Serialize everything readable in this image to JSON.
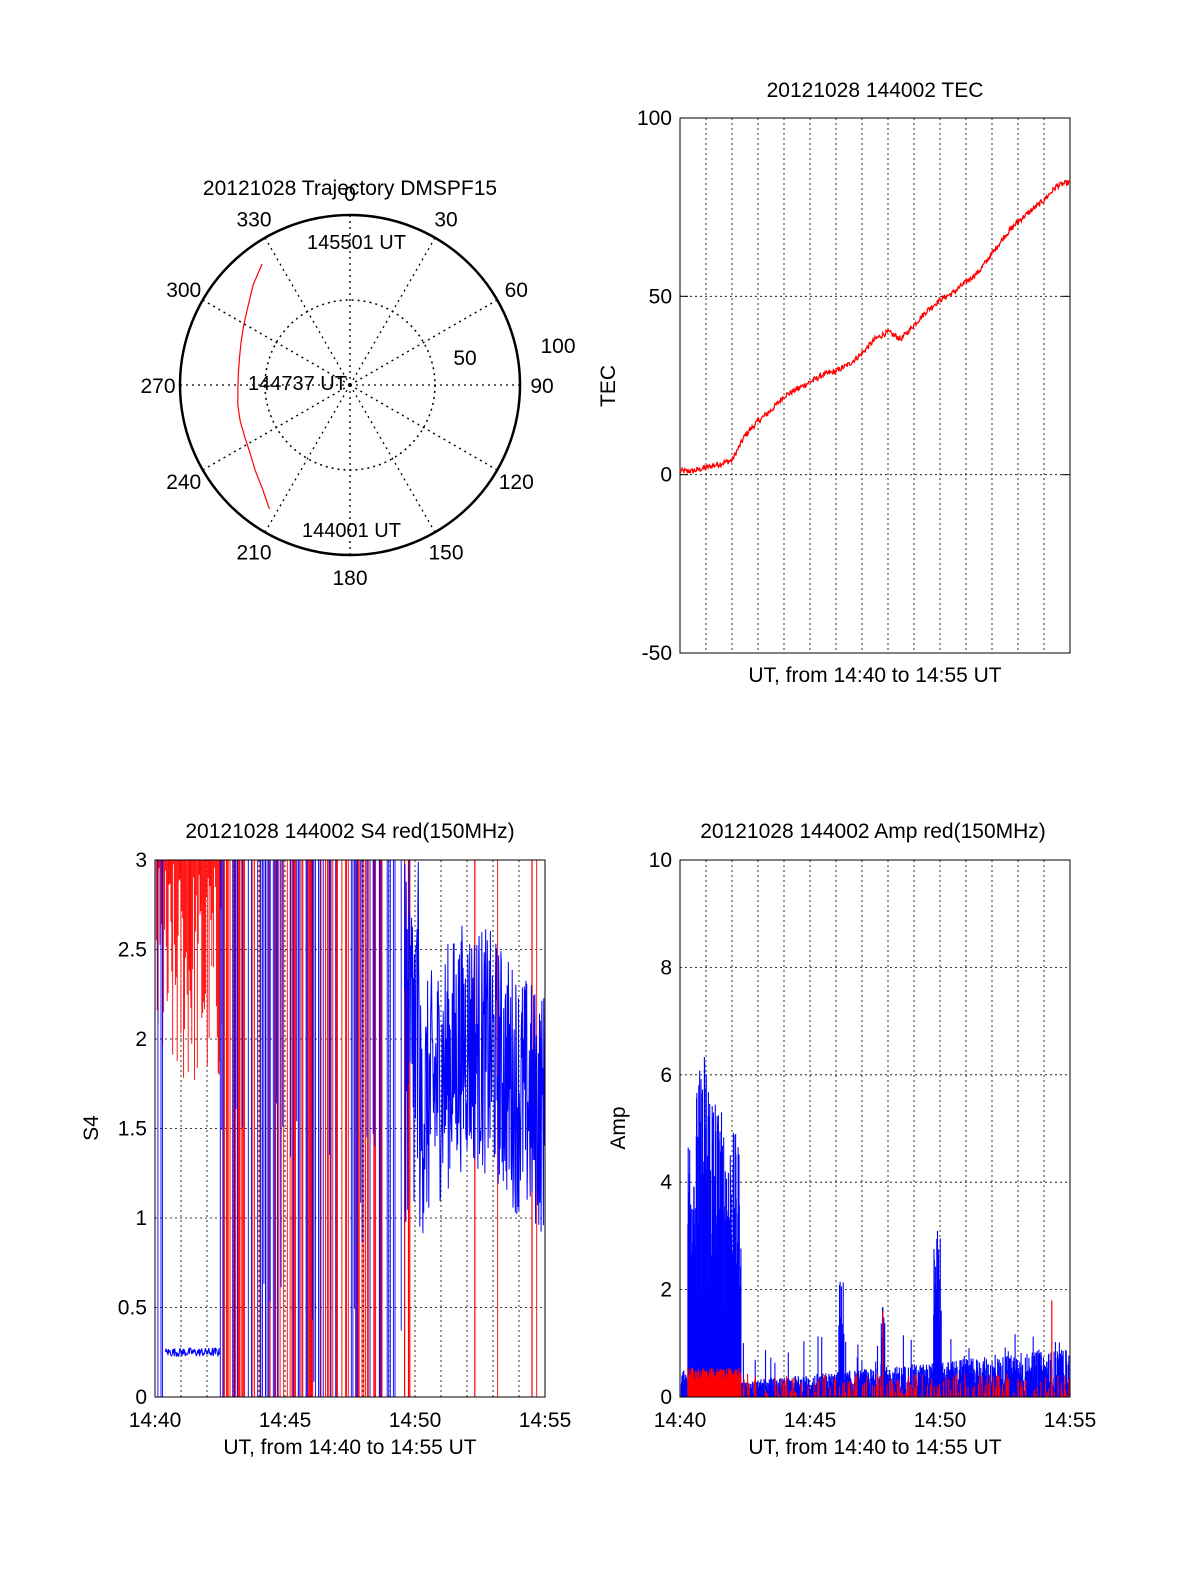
{
  "colors": {
    "red": "#ff0000",
    "blue": "#0000ff",
    "axis": "#000000",
    "grid": "#000000"
  },
  "chart_data": [
    {
      "type": "polar",
      "title": "20121028 Trajectory DMSPF15",
      "angle_labels": [
        "0",
        "30",
        "60",
        "90",
        "120",
        "150",
        "180",
        "210",
        "240",
        "270",
        "300",
        "330"
      ],
      "radial_labels": [
        "50",
        "100"
      ],
      "radial_max": 100,
      "direction": "clockwise, 0 at top",
      "series": [
        {
          "color": "red",
          "points": [
            {
              "az": 213,
              "r": 87
            },
            {
              "az": 220,
              "r": 80
            },
            {
              "az": 228,
              "r": 75
            },
            {
              "az": 236,
              "r": 71
            },
            {
              "az": 244,
              "r": 69
            },
            {
              "az": 252,
              "r": 68
            },
            {
              "az": 260,
              "r": 67
            },
            {
              "az": 268,
              "r": 66
            },
            {
              "az": 276,
              "r": 66
            },
            {
              "az": 284,
              "r": 67
            },
            {
              "az": 292,
              "r": 69
            },
            {
              "az": 300,
              "r": 72
            },
            {
              "az": 308,
              "r": 76
            },
            {
              "az": 316,
              "r": 82
            },
            {
              "az": 324,
              "r": 88
            }
          ]
        }
      ],
      "annotations": [
        "145501 UT",
        "144737 UT",
        "144001 UT"
      ]
    },
    {
      "type": "line",
      "title": "20121028 144002 TEC",
      "xlabel": "UT, from 14:40 to 14:55 UT",
      "ylabel": "TEC",
      "xlim": [
        0,
        15
      ],
      "ylim": [
        -50,
        100
      ],
      "yticks": [
        "-50",
        "0",
        "50",
        "100"
      ],
      "grid": "dotted, vertical",
      "series": [
        {
          "color": "red",
          "x": [
            0,
            0.5,
            1,
            1.5,
            2,
            2.5,
            3,
            3.5,
            4,
            4.5,
            5,
            5.5,
            6,
            6.5,
            7,
            7.5,
            8,
            8.5,
            9,
            9.5,
            10,
            10.5,
            11,
            11.5,
            12,
            12.5,
            13,
            13.5,
            14,
            14.5,
            15
          ],
          "y": [
            1,
            1,
            2,
            3,
            4,
            11,
            15,
            18,
            22,
            24,
            26,
            28,
            29,
            31,
            34,
            38,
            40,
            38,
            42,
            46,
            49,
            51,
            54,
            57,
            62,
            67,
            71,
            74,
            77,
            81,
            82
          ]
        }
      ]
    },
    {
      "type": "line",
      "title": "20121028 144002 S4 red(150MHz)",
      "xlabel": "UT, from 14:40 to 14:55 UT",
      "ylabel": "S4",
      "xlim": [
        0,
        15
      ],
      "ylim": [
        0,
        3
      ],
      "xticks": [
        "14:40",
        "14:45",
        "14:50",
        "14:55"
      ],
      "yticks": [
        "0",
        "0.5",
        "1",
        "1.5",
        "2",
        "2.5",
        "3"
      ],
      "grid": "dotted",
      "series": [
        {
          "color": "red",
          "name": "",
          "x": [
            0.2,
            2.4,
            5.0,
            8.8,
            10.6,
            14.3
          ],
          "y_max": 3,
          "note": "dense spikes 14:40-14:49 reaching the top of the axis"
        },
        {
          "color": "blue",
          "name": "",
          "x": [
            0.4,
            2.5,
            5.0,
            10.0,
            11.0,
            12.0,
            13.0,
            14.0,
            14.8
          ],
          "y": [
            0.25,
            0.25,
            2.4,
            1.5,
            1.8,
            2.0,
            1.9,
            1.7,
            1.6
          ]
        }
      ]
    },
    {
      "type": "line",
      "title": "20121028 144002 Amp red(150MHz)",
      "xlabel": "UT, from 14:40 to 14:55 UT",
      "ylabel": "Amp",
      "xlim": [
        0,
        15
      ],
      "ylim": [
        0,
        10
      ],
      "xticks": [
        "14:40",
        "14:45",
        "14:50",
        "14:55"
      ],
      "yticks": [
        "0",
        "2",
        "4",
        "6",
        "8",
        "10"
      ],
      "grid": "dotted",
      "series": [
        {
          "color": "blue",
          "x": [
            0.3,
            1.0,
            1.5,
            2.0,
            2.3,
            2.4,
            5,
            6.2,
            7.8,
            9.9,
            12,
            14.4,
            15
          ],
          "y": [
            5.0,
            6.8,
            5.5,
            5.0,
            4.8,
            0.5,
            0.6,
            2.2,
            1.7,
            3.1,
            1.0,
            1.3,
            1.1
          ]
        },
        {
          "color": "red",
          "x": [
            0.3,
            2.3,
            5,
            10,
            14.3,
            15
          ],
          "y": [
            0.5,
            0.5,
            0.4,
            0.5,
            1.8,
            0.6
          ]
        }
      ]
    }
  ]
}
